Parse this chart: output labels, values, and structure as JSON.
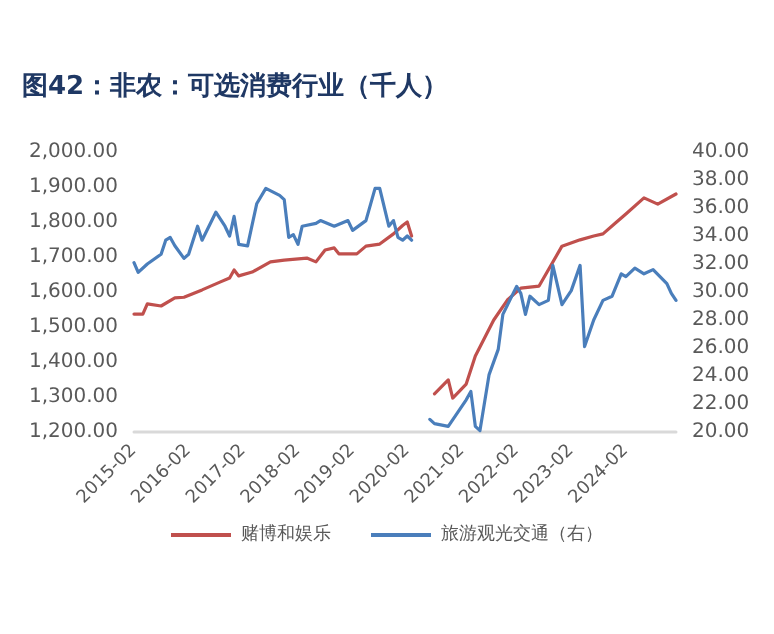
{
  "chart_data": {
    "type": "line",
    "title": "图42：非农：可选消费行业（千人）",
    "xlim": [
      "2015-02",
      "2025-01"
    ],
    "xticks": [
      "2015-02",
      "2016-02",
      "2017-02",
      "2018-02",
      "2019-02",
      "2020-02",
      "2021-02",
      "2022-02",
      "2023-02",
      "2024-02"
    ],
    "ylim": [
      1200,
      2000
    ],
    "yticks": [
      {
        "value": 1200,
        "label": "1,200.00"
      },
      {
        "value": 1300,
        "label": "1,300.00"
      },
      {
        "value": 1400,
        "label": "1,400.00"
      },
      {
        "value": 1500,
        "label": "1,500.00"
      },
      {
        "value": 1600,
        "label": "1,600.00"
      },
      {
        "value": 1700,
        "label": "1,700.00"
      },
      {
        "value": 1800,
        "label": "1,800.00"
      },
      {
        "value": 1900,
        "label": "1,900.00"
      },
      {
        "value": 2000,
        "label": "2,000.00"
      }
    ],
    "y2lim": [
      20,
      40
    ],
    "y2ticks": [
      {
        "value": 20,
        "label": "20.00"
      },
      {
        "value": 22,
        "label": "22.00"
      },
      {
        "value": 24,
        "label": "24.00"
      },
      {
        "value": 26,
        "label": "26.00"
      },
      {
        "value": 28,
        "label": "28.00"
      },
      {
        "value": 30,
        "label": "30.00"
      },
      {
        "value": 32,
        "label": "32.00"
      },
      {
        "value": 34,
        "label": "34.00"
      },
      {
        "value": 36,
        "label": "36.00"
      },
      {
        "value": 38,
        "label": "38.00"
      },
      {
        "value": 40,
        "label": "40.00"
      }
    ],
    "legend": "bottom",
    "marker": "none",
    "line_style": "solid",
    "series": [
      {
        "name": "赌博和娱乐",
        "color": "#c0504d",
        "x": [
          "2015-02",
          "2015-04",
          "2015-05",
          "2015-08",
          "2015-11",
          "2016-01",
          "2016-05",
          "2016-09",
          "2016-11",
          "2016-12",
          "2017-01",
          "2017-04",
          "2017-08",
          "2017-11",
          "2018-04",
          "2018-06",
          "2018-08",
          "2018-10",
          "2018-11",
          "2019-03",
          "2019-05",
          "2019-08",
          "2019-11",
          "2020-01",
          "2020-02",
          "2020-03",
          "2020-05",
          "2020-08",
          "2020-11",
          "2020-12",
          "2021-03",
          "2021-05",
          "2021-09",
          "2021-12",
          "2022-03",
          "2022-07",
          "2022-12",
          "2023-04",
          "2023-07",
          "2023-09",
          "2023-12",
          "2024-02",
          "2024-06",
          "2024-09",
          "2025-01"
        ],
        "values": [
          1537,
          1537,
          1566,
          1560,
          1583,
          1585,
          1606,
          1629,
          1640,
          1663,
          1646,
          1657,
          1686,
          1691,
          1697,
          1686,
          1720,
          1726,
          1709,
          1709,
          1731,
          1737,
          1766,
          1790,
          1800,
          1760,
          null,
          1309,
          1349,
          1297,
          1337,
          1417,
          1520,
          1577,
          1611,
          1617,
          1731,
          1749,
          1760,
          1766,
          1800,
          1823,
          1869,
          1851,
          1880
        ]
      },
      {
        "name": "旅游观光交通（右）",
        "color": "#4a7ebb",
        "axis": "y2",
        "x": [
          "2015-02",
          "2015-03",
          "2015-05",
          "2015-08",
          "2015-09",
          "2015-10",
          "2015-11",
          "2016-01",
          "2016-02",
          "2016-04",
          "2016-05",
          "2016-08",
          "2016-10",
          "2016-11",
          "2016-12",
          "2017-01",
          "2017-03",
          "2017-05",
          "2017-07",
          "2017-10",
          "2017-11",
          "2017-12",
          "2018-01",
          "2018-02",
          "2018-03",
          "2018-06",
          "2018-07",
          "2018-10",
          "2019-01",
          "2019-02",
          "2019-05",
          "2019-07",
          "2019-08",
          "2019-10",
          "2019-11",
          "2019-12",
          "2020-01",
          "2020-02",
          "2020-03",
          "2020-05",
          "2020-07",
          "2020-08",
          "2020-11",
          "2021-03",
          "2021-04",
          "2021-05",
          "2021-06",
          "2021-08",
          "2021-10",
          "2021-11",
          "2022-02",
          "2022-03",
          "2022-04",
          "2022-05",
          "2022-07",
          "2022-09",
          "2022-10",
          "2022-12",
          "2023-02",
          "2023-04",
          "2023-05",
          "2023-07",
          "2023-09",
          "2023-11",
          "2024-01",
          "2024-02",
          "2024-04",
          "2024-06",
          "2024-08",
          "2024-11",
          "2024-12",
          "2025-01"
        ],
        "values": [
          32.1,
          31.4,
          32.0,
          32.7,
          33.7,
          33.9,
          33.3,
          32.4,
          32.7,
          34.7,
          33.7,
          35.7,
          34.7,
          34.0,
          35.4,
          33.4,
          33.3,
          36.3,
          37.4,
          36.9,
          36.6,
          33.9,
          34.1,
          33.4,
          34.7,
          34.9,
          35.1,
          34.7,
          35.1,
          34.4,
          35.1,
          37.4,
          37.4,
          34.7,
          35.1,
          33.9,
          33.7,
          34.0,
          33.7,
          null,
          20.9,
          20.6,
          20.4,
          22.3,
          22.9,
          20.4,
          20.1,
          24.1,
          25.9,
          28.4,
          30.4,
          29.9,
          28.4,
          29.7,
          29.1,
          29.4,
          31.9,
          29.1,
          30.1,
          31.9,
          26.1,
          28.0,
          29.4,
          29.7,
          31.3,
          31.1,
          31.7,
          31.3,
          31.6,
          30.6,
          29.9,
          29.4
        ]
      }
    ]
  }
}
